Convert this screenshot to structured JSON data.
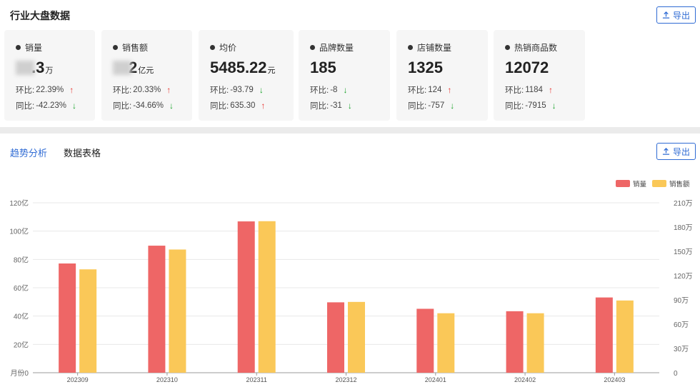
{
  "overview": {
    "title": "行业大盘数据",
    "export_label": "导出",
    "cards": [
      {
        "label": "销量",
        "value": ".3",
        "unit": "万",
        "masked": true,
        "mom_label": "环比:",
        "mom": "22.39%",
        "mom_dir": "up",
        "yoy_label": "同比:",
        "yoy": "-42.23%",
        "yoy_dir": "down"
      },
      {
        "label": "销售额",
        "value": "2",
        "unit": "亿元",
        "masked": true,
        "mom_label": "环比:",
        "mom": "20.33%",
        "mom_dir": "up",
        "yoy_label": "同比:",
        "yoy": "-34.66%",
        "yoy_dir": "down"
      },
      {
        "label": "均价",
        "value": "5485.22",
        "unit": "元",
        "masked": false,
        "mom_label": "环比:",
        "mom": "-93.79",
        "mom_dir": "down",
        "yoy_label": "同比:",
        "yoy": "635.30",
        "yoy_dir": "up"
      },
      {
        "label": "品牌数量",
        "value": "185",
        "unit": "",
        "masked": false,
        "mom_label": "环比:",
        "mom": "-8",
        "mom_dir": "down",
        "yoy_label": "同比:",
        "yoy": "-31",
        "yoy_dir": "down"
      },
      {
        "label": "店铺数量",
        "value": "1325",
        "unit": "",
        "masked": false,
        "mom_label": "环比:",
        "mom": "124",
        "mom_dir": "up",
        "yoy_label": "同比:",
        "yoy": "-757",
        "yoy_dir": "down"
      },
      {
        "label": "热销商品数",
        "value": "12072",
        "unit": "",
        "masked": false,
        "mom_label": "环比:",
        "mom": "1184",
        "mom_dir": "up",
        "yoy_label": "同比:",
        "yoy": "-7915",
        "yoy_dir": "down"
      }
    ]
  },
  "trend": {
    "tabs": [
      {
        "label": "趋势分析",
        "active": true
      },
      {
        "label": "数据表格",
        "active": false
      }
    ],
    "export_label": "导出"
  },
  "colors": {
    "accent": "#2f6bd4",
    "series_sales_volume": "#ee6666",
    "series_sales_amount": "#fac858",
    "up": "#e8312c",
    "down": "#1aa32a"
  },
  "chart_data": {
    "type": "bar",
    "categories": [
      "202309",
      "202310",
      "202311",
      "202312",
      "202401",
      "202402",
      "202403"
    ],
    "series": [
      {
        "name": "销量",
        "axis": "right",
        "values": [
          135,
          157,
          187,
          87,
          79,
          76,
          93
        ]
      },
      {
        "name": "销售额",
        "axis": "left",
        "values": [
          73,
          87,
          107,
          50,
          42,
          42,
          51
        ]
      }
    ],
    "left_axis": {
      "ticks": [
        "0",
        "20亿",
        "40亿",
        "60亿",
        "80亿",
        "100亿",
        "120亿"
      ],
      "range": [
        0,
        120
      ],
      "name": "月份"
    },
    "right_axis": {
      "ticks": [
        "0",
        "30万",
        "60万",
        "90万",
        "120万",
        "150万",
        "180万",
        "210万"
      ],
      "range": [
        0,
        210
      ]
    },
    "legend_position": "top-right",
    "grid": true
  }
}
